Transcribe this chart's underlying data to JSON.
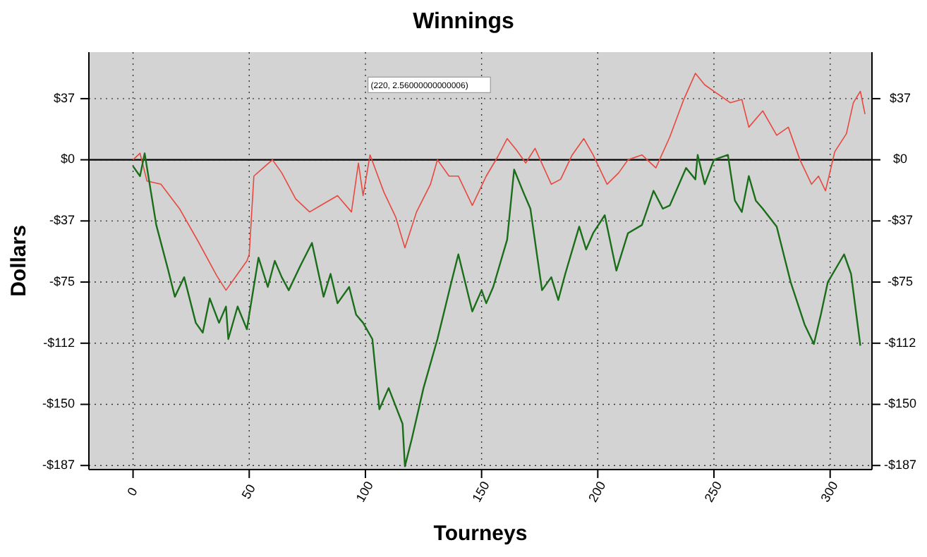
{
  "chart_data": {
    "type": "line",
    "title": "Winnings",
    "xlabel": "Tourneys",
    "ylabel": "Dollars",
    "xlim": [
      -19,
      318
    ],
    "xticks": [
      0,
      50,
      100,
      150,
      200,
      250,
      300
    ],
    "ylim": [
      -190,
      66
    ],
    "yticks": [
      {
        "value": 37.5,
        "label": "$37"
      },
      {
        "value": 0,
        "label": "$0"
      },
      {
        "value": -37.5,
        "label": "-$37"
      },
      {
        "value": -75,
        "label": "-$75"
      },
      {
        "value": -112.5,
        "label": "-$112"
      },
      {
        "value": -150,
        "label": "-$150"
      },
      {
        "value": -187.5,
        "label": "-$187"
      }
    ],
    "y2lim": [
      -190,
      66
    ],
    "y2ticks": [
      {
        "value": 37.5,
        "label": "$37"
      },
      {
        "value": 0,
        "label": "$0"
      },
      {
        "value": -37.5,
        "label": "-$37"
      },
      {
        "value": -75,
        "label": "-$75"
      },
      {
        "value": -112.5,
        "label": "-$112"
      },
      {
        "value": -150,
        "label": "-$150"
      },
      {
        "value": -187.5,
        "label": "-$187"
      }
    ],
    "grid": true,
    "ref_lines": [
      {
        "axis": "y",
        "value": 0,
        "color": "#000000",
        "line_style": "solid"
      }
    ],
    "annotations": [
      "(220, 2.56000000000006)"
    ],
    "series": [
      {
        "color": "#e8483f",
        "x": [
          0,
          3,
          6,
          12,
          20,
          28,
          36,
          40,
          45,
          49,
          50,
          52,
          56,
          60,
          64,
          70,
          76,
          82,
          88,
          94,
          97,
          99,
          102,
          108,
          113,
          117,
          122,
          128,
          131,
          136,
          140,
          146,
          152,
          157,
          161,
          165,
          169,
          173,
          180,
          184,
          189,
          194,
          198,
          204,
          209,
          213,
          219,
          225,
          231,
          237,
          242,
          246,
          251,
          257,
          262,
          265,
          271,
          277,
          282,
          287,
          292,
          295,
          298,
          302,
          307,
          310,
          313,
          315
        ],
        "values": [
          0,
          4,
          -13,
          -15,
          -30,
          -50,
          -71,
          -80,
          -70,
          -62,
          -58,
          -10,
          -5,
          0,
          -8,
          -24,
          -32,
          -27,
          -22,
          -32,
          -2,
          -22,
          3,
          -20,
          -35,
          -54,
          -32,
          -15,
          0,
          -10,
          -10,
          -28,
          -10,
          2,
          13,
          6,
          -2,
          7,
          -15,
          -12,
          3,
          13,
          3,
          -15,
          -8,
          0,
          3,
          -5,
          14,
          37,
          53,
          46,
          41,
          35,
          37,
          20,
          30,
          15,
          20,
          0,
          -15,
          -10,
          -19,
          5,
          16,
          35,
          42,
          28
        ]
      },
      {
        "color": "#1a6e1a",
        "x": [
          0,
          3,
          5,
          10,
          15,
          18,
          22,
          27,
          30,
          33,
          37,
          40,
          41,
          45,
          49,
          50,
          54,
          58,
          61,
          64,
          67,
          72,
          77,
          82,
          85,
          88,
          93,
          96,
          99,
          103,
          106,
          110,
          116,
          117,
          120,
          125,
          131,
          137,
          140,
          146,
          150,
          152,
          155,
          161,
          164,
          168,
          171,
          176,
          180,
          183,
          186,
          192,
          195,
          198,
          203,
          208,
          213,
          219,
          224,
          228,
          231,
          238,
          242,
          243,
          246,
          250,
          256,
          259,
          262,
          265,
          268,
          271,
          277,
          283,
          289,
          293,
          296,
          299,
          306,
          309,
          313
        ],
        "values": [
          -4,
          -10,
          4,
          -40,
          -67,
          -84,
          -72,
          -100,
          -106,
          -85,
          -100,
          -90,
          -110,
          -90,
          -104,
          -95,
          -60,
          -78,
          -62,
          -72,
          -80,
          -65,
          -51,
          -84,
          -70,
          -88,
          -78,
          -95,
          -100,
          -110,
          -153,
          -140,
          -162,
          -188,
          -171,
          -140,
          -110,
          -75,
          -58,
          -93,
          -80,
          -88,
          -78,
          -49,
          -6,
          -20,
          -30,
          -80,
          -72,
          -86,
          -70,
          -41,
          -55,
          -45,
          -34,
          -68,
          -45,
          -40,
          -19,
          -30,
          -28,
          -5,
          -12,
          3,
          -15,
          0,
          3,
          -25,
          -32,
          -10,
          -25,
          -30,
          -41,
          -75,
          -101,
          -113,
          -95,
          -75,
          -58,
          -70,
          -114
        ]
      }
    ]
  }
}
